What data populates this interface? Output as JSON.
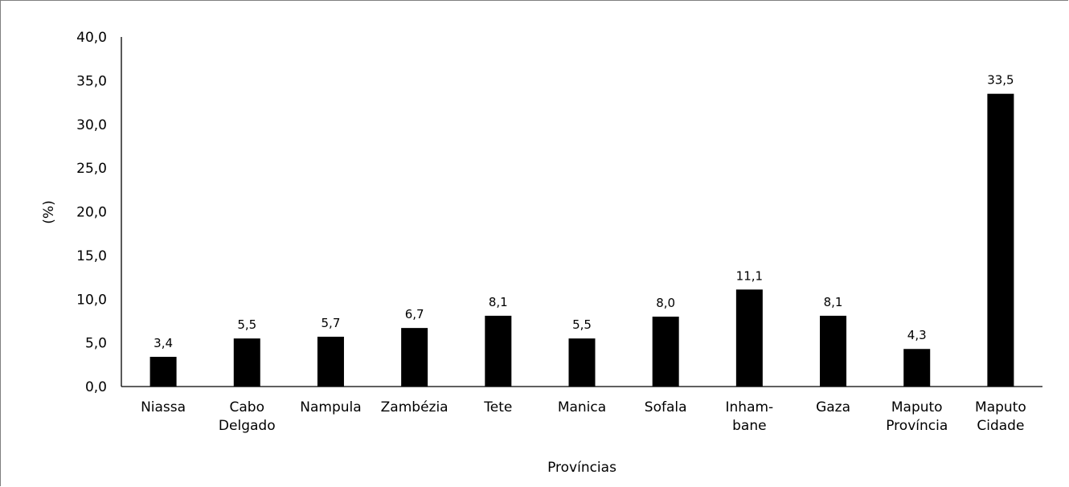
{
  "chart_data": {
    "type": "bar",
    "categories": [
      [
        "Niassa"
      ],
      [
        "Cabo",
        "Delgado"
      ],
      [
        "Nampula"
      ],
      [
        "Zambézia"
      ],
      [
        "Tete"
      ],
      [
        "Manica"
      ],
      [
        "Sofala"
      ],
      [
        "Inham-",
        "bane"
      ],
      [
        "Gaza"
      ],
      [
        "Maputo",
        "Província"
      ],
      [
        "Maputo",
        "Cidade"
      ]
    ],
    "values": [
      3.4,
      5.5,
      5.7,
      6.7,
      8.1,
      5.5,
      8.0,
      11.1,
      8.1,
      4.3,
      33.5
    ],
    "data_labels": [
      "3,4",
      "5,5",
      "5,7",
      "6,7",
      "8,1",
      "5,5",
      "8,0",
      "11,1",
      "8,1",
      "4,3",
      "33,5"
    ],
    "yticks": [
      "0,0",
      "5,0",
      "10,0",
      "15,0",
      "20,0",
      "25,0",
      "30,0",
      "35,0",
      "40,0"
    ],
    "ylim": [
      0,
      40
    ],
    "ylabel": "(%)",
    "xlabel": "Províncias",
    "title": "",
    "grid": false,
    "bar_color": "#000000"
  }
}
